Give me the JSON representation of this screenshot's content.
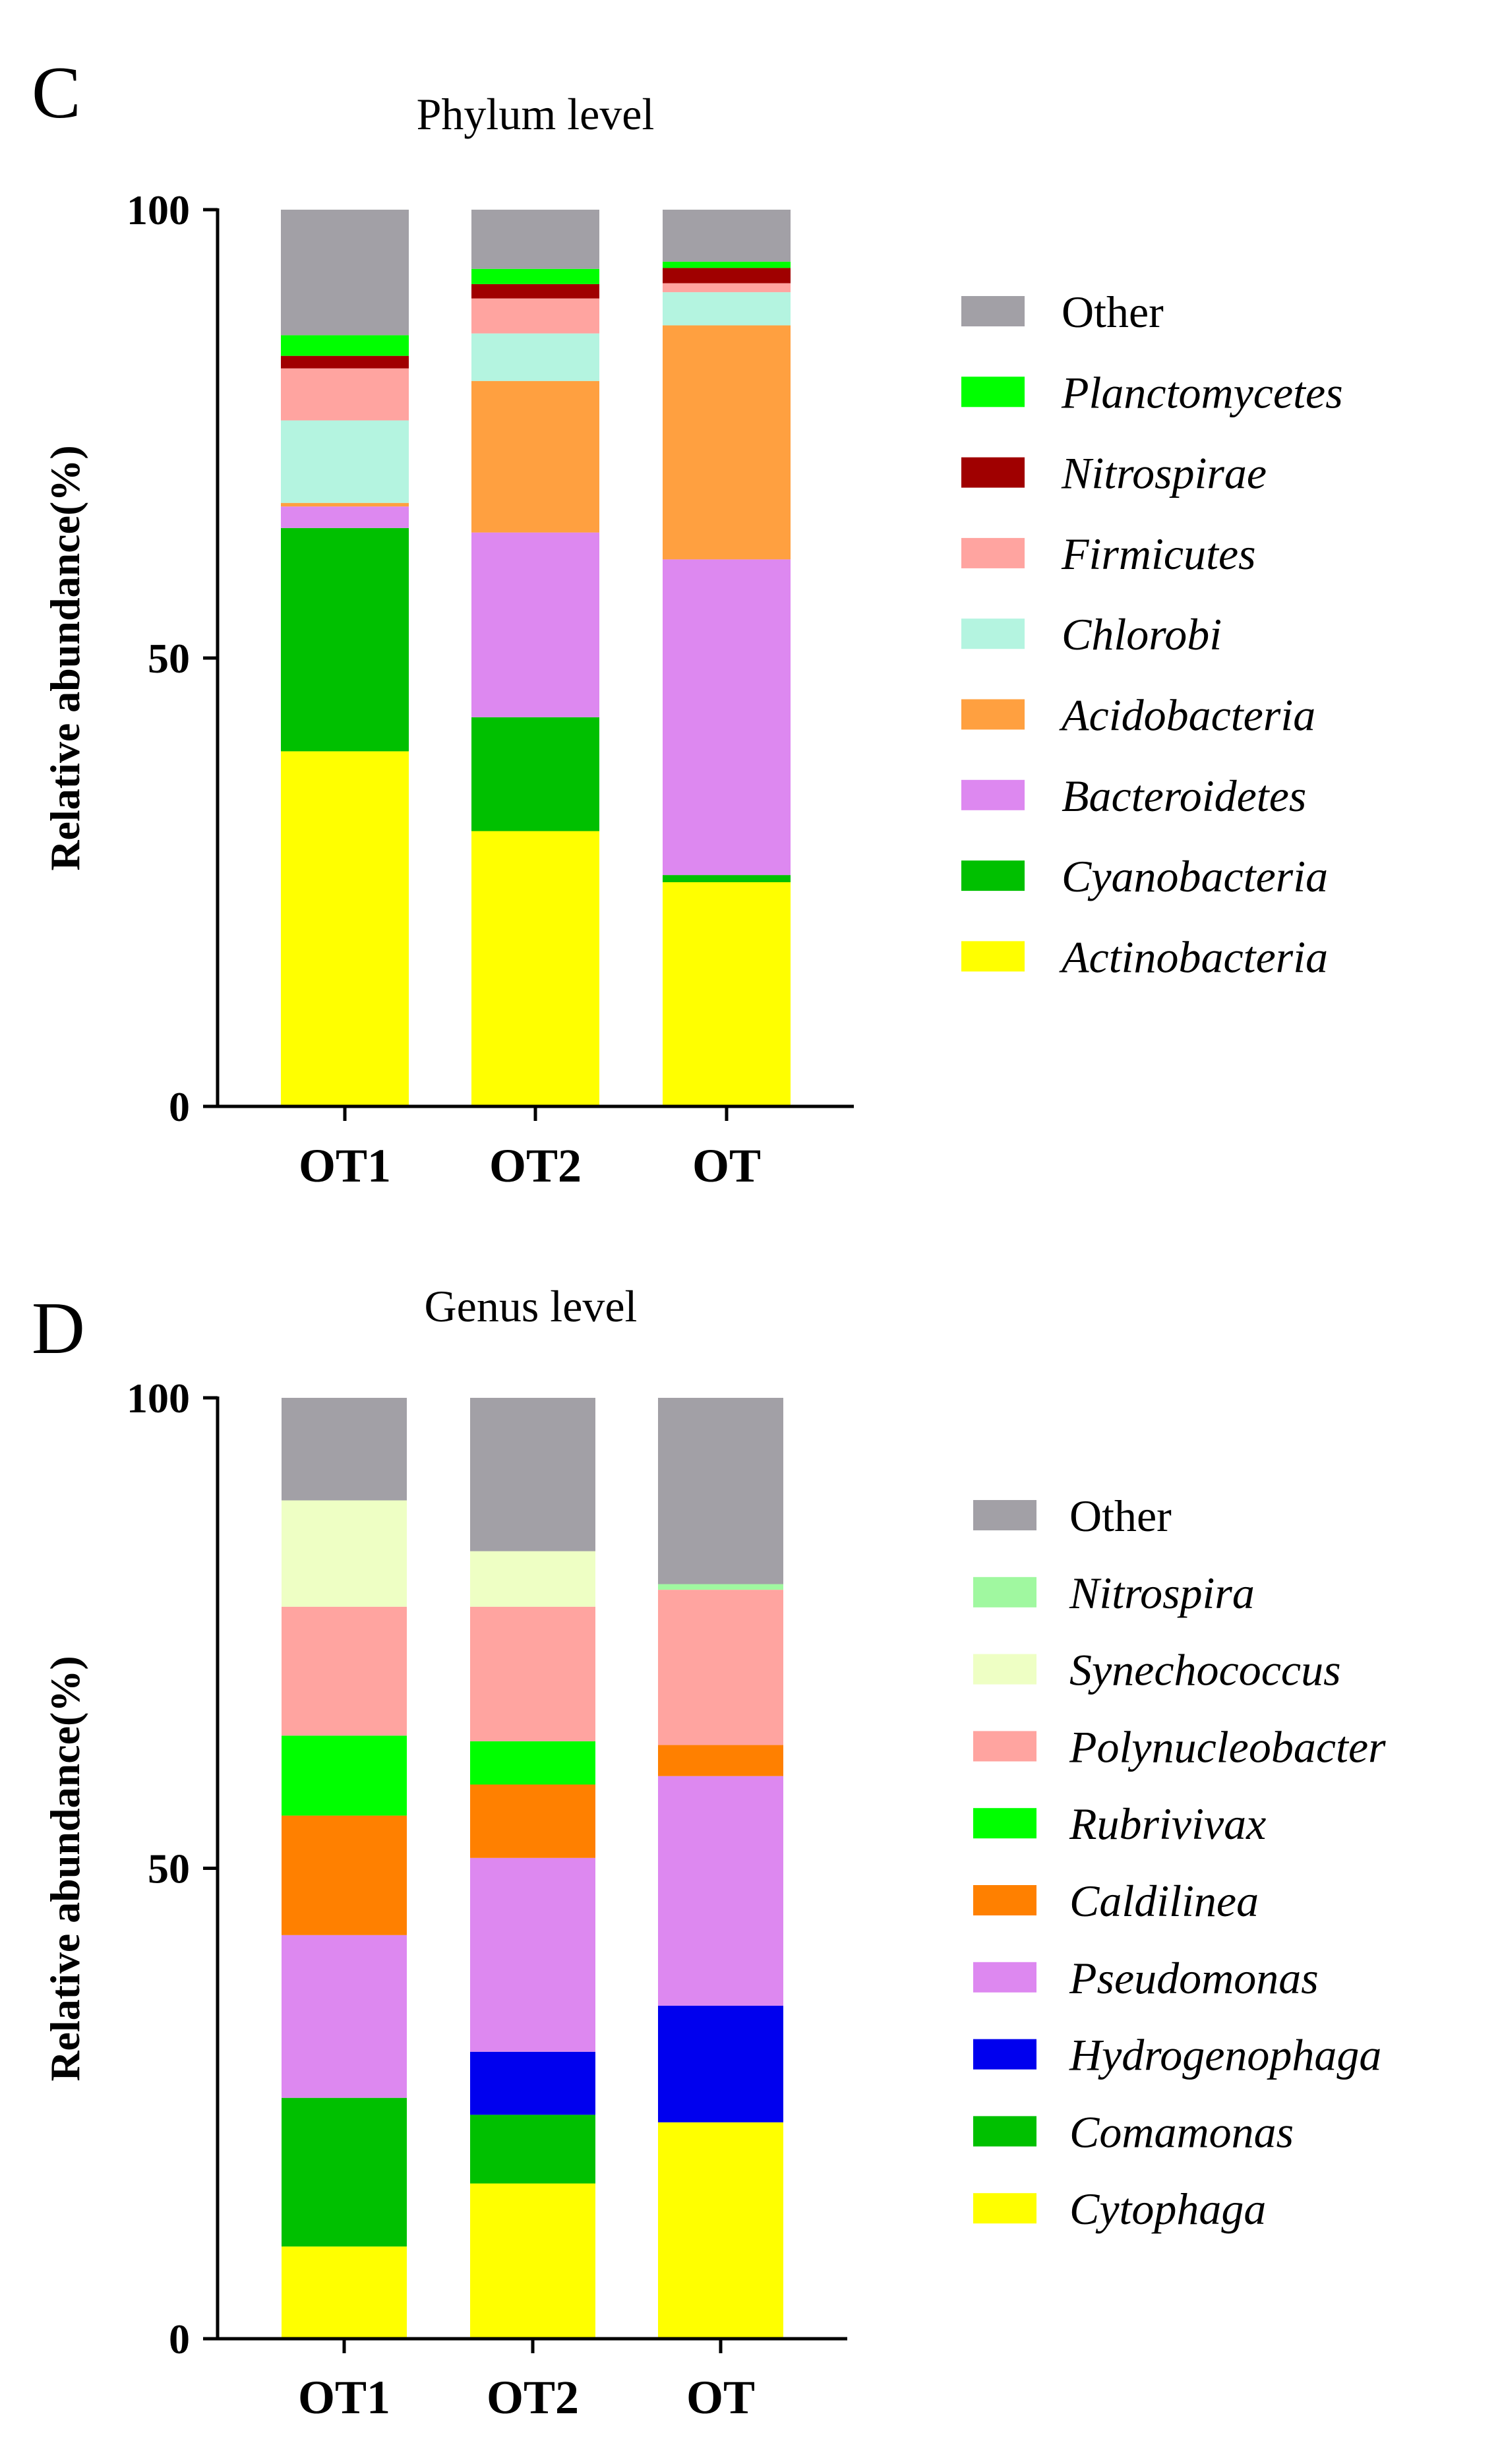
{
  "chart_data": [
    {
      "type": "bar",
      "stacked": true,
      "panel_label": "C",
      "title": "Phylum level",
      "xlabel": "",
      "ylabel": "Relative abundance(%)",
      "ylim": [
        0,
        100
      ],
      "yticks": [
        0,
        50,
        100
      ],
      "categories": [
        "OT1",
        "OT2",
        "OT"
      ],
      "legend_position": "right",
      "series": [
        {
          "name": "Actinobacteria",
          "color": "#ffff00",
          "italic": true,
          "values": [
            39.6,
            30.7,
            25.0
          ]
        },
        {
          "name": "Cyanobacteria",
          "color": "#00c000",
          "italic": true,
          "values": [
            24.9,
            12.7,
            0.8
          ]
        },
        {
          "name": "Bacteroidetes",
          "color": "#dd88f0",
          "italic": true,
          "values": [
            2.4,
            20.6,
            35.2
          ]
        },
        {
          "name": "Acidobacteria",
          "color": "#ffa040",
          "italic": true,
          "values": [
            0.4,
            16.9,
            26.1
          ]
        },
        {
          "name": "Chlorobi",
          "color": "#b4f4e0",
          "italic": true,
          "values": [
            9.2,
            5.3,
            3.7
          ]
        },
        {
          "name": "Firmicutes",
          "color": "#ffa4a0",
          "italic": true,
          "values": [
            5.8,
            3.9,
            1.0
          ]
        },
        {
          "name": "Nitrospirae",
          "color": "#a00000",
          "italic": true,
          "values": [
            1.4,
            1.6,
            1.7
          ]
        },
        {
          "name": "Planctomycetes",
          "color": "#00ff00",
          "italic": true,
          "values": [
            2.3,
            1.7,
            0.7
          ]
        },
        {
          "name": "Other",
          "color": "#a2a0a6",
          "italic": false,
          "values": [
            14.0,
            6.6,
            5.8
          ]
        }
      ]
    },
    {
      "type": "bar",
      "stacked": true,
      "panel_label": "D",
      "title": "Genus level",
      "xlabel": "",
      "ylabel": "Relative abundance(%)",
      "ylim": [
        0,
        100
      ],
      "yticks": [
        0,
        50,
        100
      ],
      "categories": [
        "OT1",
        "OT2",
        "OT"
      ],
      "legend_position": "right",
      "series": [
        {
          "name": "Cytophaga",
          "color": "#ffff00",
          "italic": true,
          "values": [
            9.8,
            16.5,
            23.0
          ]
        },
        {
          "name": "Comamonas",
          "color": "#00c000",
          "italic": true,
          "values": [
            15.8,
            7.3,
            0.0
          ]
        },
        {
          "name": "Hydrogenophaga",
          "color": "#0000ee",
          "italic": true,
          "values": [
            0.0,
            6.7,
            12.4
          ]
        },
        {
          "name": "Pseudomonas",
          "color": "#dd88f0",
          "italic": true,
          "values": [
            17.3,
            20.6,
            24.4
          ]
        },
        {
          "name": "Caldilinea",
          "color": "#ff8000",
          "italic": true,
          "values": [
            12.7,
            7.8,
            3.3
          ]
        },
        {
          "name": "Rubrivivax",
          "color": "#00ff00",
          "italic": true,
          "values": [
            8.5,
            4.6,
            0.0
          ]
        },
        {
          "name": "Polynucleobacter",
          "color": "#ffa4a0",
          "italic": true,
          "values": [
            13.7,
            14.3,
            16.5
          ]
        },
        {
          "name": "Synechococcus",
          "color": "#eeffc4",
          "italic": true,
          "values": [
            11.3,
            5.9,
            0.0
          ]
        },
        {
          "name": "Nitrospira",
          "color": "#a0f8a0",
          "italic": true,
          "values": [
            0.0,
            0.0,
            0.6
          ]
        },
        {
          "name": "Other",
          "color": "#a2a0a6",
          "italic": false,
          "values": [
            10.9,
            16.3,
            19.8
          ]
        }
      ]
    }
  ]
}
